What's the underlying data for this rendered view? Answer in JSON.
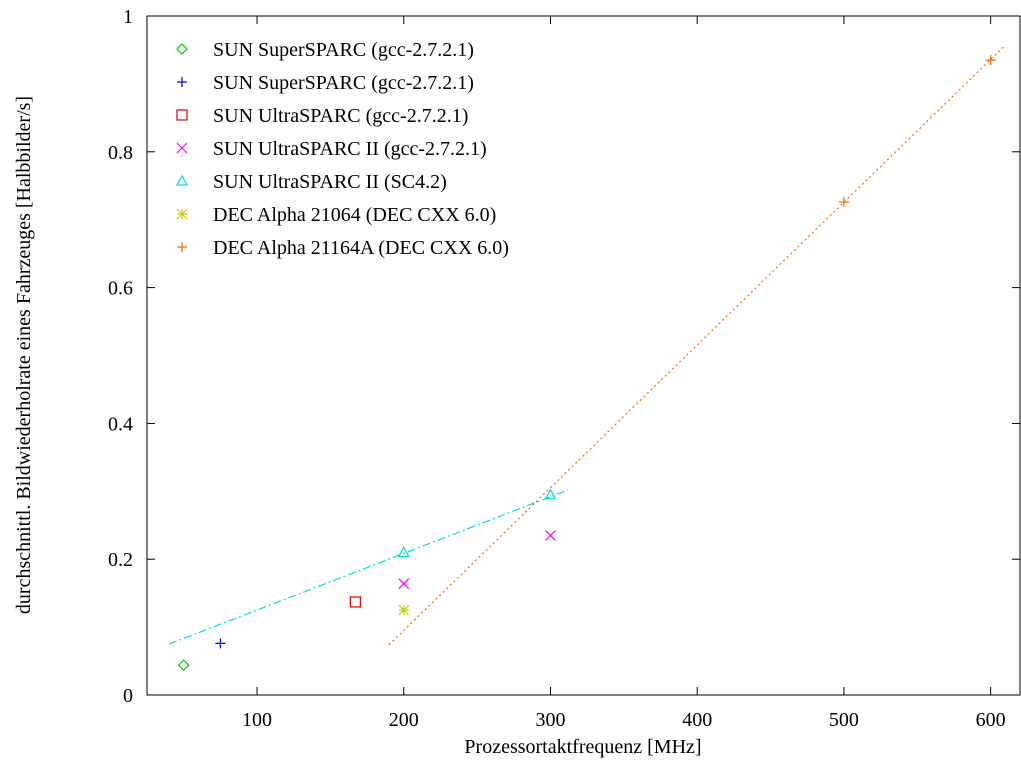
{
  "chart_data": {
    "type": "scatter",
    "title": "",
    "xlabel": "Prozessortaktfrequenz [MHz]",
    "ylabel": "durchschnittl. Bildwiederholrate eines Fahrzeuges [Halbbilder/s]",
    "xlim": [
      25,
      620
    ],
    "ylim": [
      0,
      1
    ],
    "xticks": [
      100,
      200,
      300,
      400,
      500,
      600
    ],
    "yticks": [
      0,
      0.2,
      0.4,
      0.6,
      0.8,
      1
    ],
    "xtick_labels": [
      "100",
      "200",
      "300",
      "400",
      "500",
      "600"
    ],
    "ytick_labels": [
      "0",
      "0.2",
      "0.4",
      "0.6",
      "0.8",
      "1"
    ],
    "grid": false,
    "legend_position": "top-left",
    "series": [
      {
        "name": "SUN SuperSPARC (gcc-2.7.2.1)",
        "marker": "diamond",
        "color": "#00cc00",
        "points": [
          [
            50,
            0.044
          ]
        ]
      },
      {
        "name": "SUN SuperSPARC (gcc-2.7.2.1)",
        "marker": "plus",
        "color": "#0000ff",
        "points": [
          [
            75,
            0.076
          ]
        ]
      },
      {
        "name": "SUN UltraSPARC (gcc-2.7.2.1)",
        "marker": "square",
        "color": "#dd0000",
        "points": [
          [
            167,
            0.137
          ]
        ]
      },
      {
        "name": "SUN UltraSPARC II (gcc-2.7.2.1)",
        "marker": "cross",
        "color": "#ff00ff",
        "points": [
          [
            200,
            0.164
          ],
          [
            300,
            0.235
          ]
        ]
      },
      {
        "name": "SUN UltraSPARC II (SC4.2)",
        "marker": "triangle",
        "color": "#00dddd",
        "points": [
          [
            200,
            0.21
          ],
          [
            300,
            0.295
          ]
        ]
      },
      {
        "name": "DEC Alpha 21064 (DEC CXX 6.0)",
        "marker": "star",
        "color": "#cccc00",
        "points": [
          [
            200,
            0.125
          ]
        ]
      },
      {
        "name": "DEC Alpha 21164A (DEC CXX 6.0)",
        "marker": "plus",
        "color": "#ff6600",
        "points": [
          [
            500,
            0.726
          ],
          [
            600,
            0.935
          ]
        ]
      }
    ],
    "fit_lines": [
      {
        "color": "#00dddd",
        "dash": "dashdot",
        "from": [
          40,
          0.075
        ],
        "to": [
          312,
          0.302
        ]
      },
      {
        "color": "#ff6600",
        "dash": "dotted",
        "from": [
          190,
          0.074
        ],
        "to": [
          610,
          0.957
        ]
      }
    ]
  }
}
